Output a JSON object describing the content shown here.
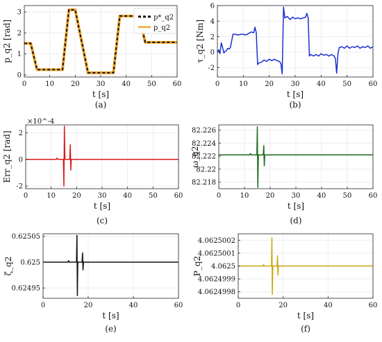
{
  "chart_data": [
    {
      "id": "a",
      "type": "line",
      "caption": "(a)",
      "xlabel": "t [s]",
      "ylabel": "p_q2 [rad]",
      "xlim": [
        0,
        60
      ],
      "ylim": [
        -0.1,
        3.3
      ],
      "xticks": [
        "0",
        "10",
        "20",
        "30",
        "40",
        "50",
        "60"
      ],
      "yticks": [
        "0",
        "1",
        "2",
        "3"
      ],
      "legend_position": "top-right",
      "series": [
        {
          "name": "p*_q2",
          "color": "#111111",
          "dashed": true,
          "x": [
            0,
            2.5,
            5,
            15,
            17.5,
            20,
            25,
            27.5,
            30,
            35,
            37.5,
            40,
            45,
            47.5,
            50,
            60
          ],
          "y": [
            1.5,
            1.5,
            0.25,
            0.25,
            3.1,
            3.1,
            0.1,
            0.1,
            0.1,
            0.1,
            2.8,
            2.8,
            2.8,
            1.55,
            1.55,
            1.55
          ]
        },
        {
          "name": "p_q2",
          "color": "#f0a830",
          "dashed": false,
          "x": [
            0,
            2.5,
            5,
            15,
            17.5,
            20,
            25,
            27.5,
            30,
            35,
            37.5,
            40,
            45,
            47.5,
            50,
            60
          ],
          "y": [
            1.5,
            1.5,
            0.25,
            0.25,
            3.1,
            3.1,
            0.1,
            0.1,
            0.1,
            0.1,
            2.8,
            2.8,
            2.8,
            1.55,
            1.55,
            1.55
          ]
        }
      ]
    },
    {
      "id": "b",
      "type": "line",
      "caption": "(b)",
      "xlabel": "t [s]",
      "ylabel": "τ_q2 [Nm]",
      "xlim": [
        0,
        60
      ],
      "ylim": [
        -3.2,
        6
      ],
      "xticks": [
        "0",
        "10",
        "20",
        "30",
        "40",
        "50",
        "60"
      ],
      "yticks": [
        "-2",
        "0",
        "2",
        "4",
        "6"
      ],
      "series": [
        {
          "name": "",
          "color": "#1b2fd0",
          "x": [
            0,
            0.5,
            1,
            1.5,
            2,
            2.5,
            3,
            3.5,
            4,
            4.5,
            5,
            6,
            7,
            8,
            9,
            10,
            11,
            12,
            13,
            14,
            14.5,
            15,
            15.5,
            16,
            17,
            18,
            19,
            20,
            21,
            22,
            23,
            24,
            24.5,
            25,
            25.5,
            26,
            27,
            28,
            29,
            30,
            31,
            32,
            33,
            34,
            34.5,
            35,
            35.5,
            36,
            37,
            38,
            39,
            40,
            41,
            42,
            43,
            44,
            45,
            45.5,
            46,
            46.5,
            47,
            48,
            49,
            50,
            51,
            52,
            53,
            54,
            55,
            56,
            57,
            58,
            59,
            60
          ],
          "y": [
            0,
            0.3,
            -0.2,
            1.2,
            0.6,
            -0.1,
            0.1,
            0.2,
            0.5,
            0.4,
            0.6,
            2.3,
            2.3,
            2.2,
            2.3,
            2.3,
            2.2,
            2.4,
            2.6,
            2.5,
            3.2,
            2.5,
            -1.6,
            -1.4,
            -1.3,
            -1.0,
            -1.2,
            -0.9,
            -1.1,
            -0.9,
            -1.1,
            -1.2,
            -1.5,
            -2.8,
            5.8,
            4.4,
            4.6,
            4.2,
            4.5,
            4.3,
            4.4,
            4.3,
            4.4,
            4.5,
            5.0,
            4.4,
            -0.5,
            -0.3,
            -0.5,
            -0.3,
            -0.5,
            -0.2,
            -0.4,
            -0.3,
            -0.5,
            -0.3,
            -0.5,
            -0.8,
            -2.7,
            -0.2,
            0.6,
            0.7,
            0.5,
            0.8,
            0.5,
            0.7,
            0.6,
            0.8,
            0.5,
            0.7,
            0.6,
            0.8,
            0.5,
            0.7
          ]
        }
      ]
    },
    {
      "id": "c",
      "type": "line",
      "caption": "(c)",
      "xlabel": "t [s]",
      "ylabel": "Err_q2 [rad]",
      "exponent_label": "×10^-4",
      "xlim": [
        0,
        60
      ],
      "ylim": [
        -0.00022,
        0.00026
      ],
      "xticks": [
        "0",
        "10",
        "20",
        "30",
        "40",
        "50",
        "60"
      ],
      "yticks": [
        "-2",
        "0",
        "2"
      ],
      "series": [
        {
          "name": "",
          "color": "#d91a1a",
          "x": [
            0,
            12,
            12.3,
            12.6,
            14,
            14.8,
            15,
            15.2,
            15.4,
            16,
            17.3,
            17.5,
            17.7,
            17.9,
            19,
            30,
            60
          ],
          "y": [
            0,
            0,
            1e-05,
            0,
            0,
            0,
            -0.0002,
            0.00025,
            0,
            0,
            0,
            0.00011,
            -8e-05,
            0,
            0,
            0,
            0
          ]
        }
      ]
    },
    {
      "id": "d",
      "type": "line",
      "caption": "(d)",
      "xlabel": "t [s]",
      "ylabel": "ω_q2",
      "xlim": [
        0,
        60
      ],
      "ylim": [
        82.217,
        82.2268
      ],
      "xticks": [
        "0",
        "10",
        "20",
        "30",
        "40",
        "50",
        "60"
      ],
      "yticks": [
        "82.218",
        "82.22",
        "82.222",
        "82.224",
        "82.226"
      ],
      "series": [
        {
          "name": "",
          "color": "#1d6b1d",
          "x": [
            0,
            12,
            12.3,
            12.6,
            14,
            14.8,
            15,
            15.2,
            15.4,
            16,
            17.3,
            17.5,
            17.7,
            17.9,
            19,
            30,
            60
          ],
          "y": [
            82.2222,
            82.2222,
            82.2224,
            82.2222,
            82.2222,
            82.2222,
            82.2265,
            82.2172,
            82.2222,
            82.2222,
            82.2222,
            82.2236,
            82.2205,
            82.2222,
            82.2222,
            82.2222,
            82.2222
          ]
        }
      ]
    },
    {
      "id": "e",
      "type": "line",
      "caption": "(e)",
      "xlabel": "t [s]",
      "ylabel": "ζ_q2",
      "xlim": [
        0,
        60
      ],
      "ylim": [
        0.62493,
        0.625055
      ],
      "xticks": [
        "0",
        "20",
        "40",
        "60"
      ],
      "yticks": [
        "0.62495",
        "0.625",
        "0.62505"
      ],
      "series": [
        {
          "name": "",
          "color": "#111111",
          "x": [
            0,
            11,
            11.3,
            11.6,
            14,
            14.8,
            15,
            15.2,
            15.4,
            16,
            17.3,
            17.5,
            17.7,
            17.9,
            19,
            30,
            60
          ],
          "y": [
            0.625,
            0.625,
            0.625003,
            0.625,
            0.625,
            0.625,
            0.625052,
            0.624935,
            0.625,
            0.625,
            0.625,
            0.625018,
            0.624985,
            0.625,
            0.625,
            0.625,
            0.625
          ]
        }
      ]
    },
    {
      "id": "f",
      "type": "line",
      "caption": "(f)",
      "xlabel": "t [s]",
      "ylabel": "P_q2",
      "xlim": [
        0,
        60
      ],
      "ylim": [
        4.06249975,
        4.06250025
      ],
      "xticks": [
        "0",
        "20",
        "40",
        "60"
      ],
      "yticks": [
        "4.0624998",
        "4.0624999",
        "4.0625",
        "4.0625001",
        "4.0625002"
      ],
      "series": [
        {
          "name": "",
          "color": "#c9a712",
          "x": [
            0,
            11,
            11.3,
            11.6,
            14,
            14.8,
            15,
            15.2,
            15.4,
            16,
            17.3,
            17.5,
            17.7,
            17.9,
            19,
            30,
            60
          ],
          "y": [
            4.0625,
            4.0625,
            4.06250001,
            4.0625,
            4.0625,
            4.0625,
            4.06250022,
            4.06249978,
            4.0625,
            4.0625,
            4.0625,
            4.06250008,
            4.06249993,
            4.0625,
            4.0625,
            4.0625,
            4.0625
          ]
        }
      ]
    }
  ]
}
